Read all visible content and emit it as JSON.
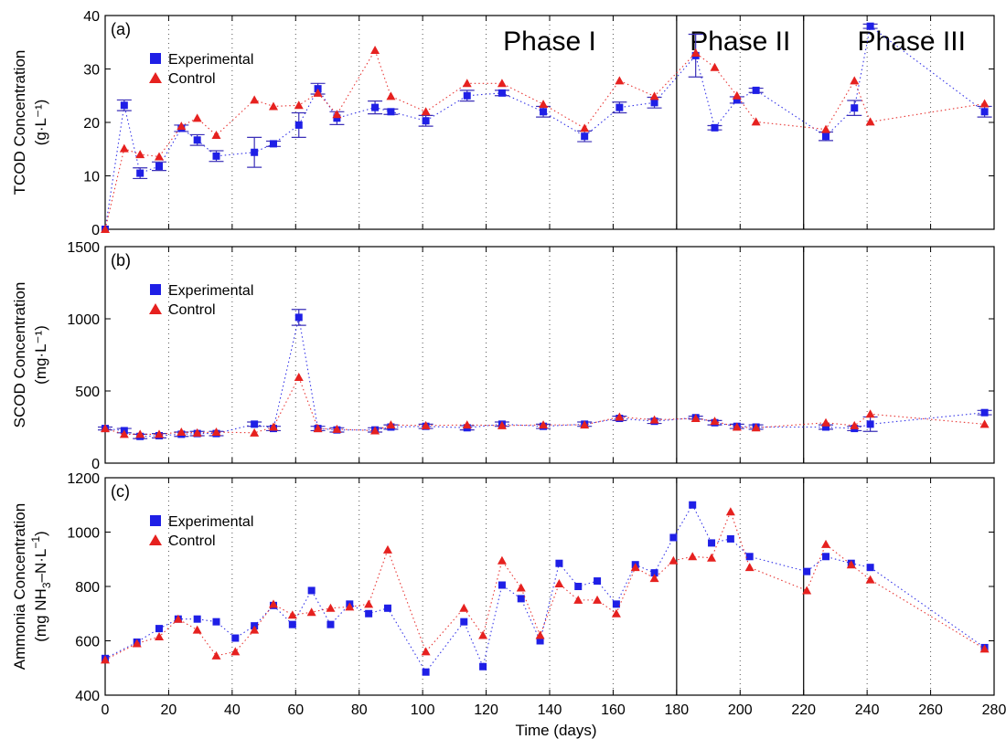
{
  "colors": {
    "experimental": "#1f1fe6",
    "control": "#e6211f",
    "experimental_errorbar": "#3a2fb8",
    "control_errorbar": "#d42424",
    "grid": "#555555"
  },
  "legend": {
    "experimental": "Experimental",
    "control": "Control"
  },
  "xlabel": "Time (days)",
  "chart_data": [
    {
      "type": "scatter",
      "panel_label": "(a)",
      "ylabel": "TCOD Concentration",
      "ylabel_unit": "(g·L⁻¹)",
      "xlim": [
        0,
        280
      ],
      "ylim": [
        0,
        40
      ],
      "yticks": [
        0,
        10,
        20,
        30,
        40
      ],
      "phase_boundaries": [
        180,
        220
      ],
      "phases": [
        {
          "label": "Phase I",
          "x_center": 140
        },
        {
          "label": "Phase II",
          "x_center": 200
        },
        {
          "label": "Phase III",
          "x_center": 254
        }
      ],
      "legend_position": "top-left",
      "grid": "vertical-dotted",
      "series": [
        {
          "name": "Experimental",
          "marker": "square",
          "x": [
            0,
            6,
            11,
            17,
            24,
            29,
            35,
            47,
            53,
            61,
            67,
            73,
            85,
            90,
            101,
            114,
            125,
            138,
            151,
            162,
            173,
            186,
            192,
            199,
            205,
            227,
            236,
            241,
            277
          ],
          "y": [
            0,
            23.2,
            10.5,
            11.8,
            18.9,
            16.7,
            13.7,
            14.4,
            16.0,
            19.5,
            26.3,
            20.8,
            22.8,
            22.0,
            20.3,
            25.0,
            25.5,
            22.0,
            17.4,
            22.8,
            23.7,
            32.5,
            19.0,
            24.2,
            26.0,
            17.4,
            22.7,
            38.0,
            22.0
          ],
          "err": [
            0,
            1.0,
            1.0,
            0.8,
            0.6,
            1.0,
            1.0,
            2.8,
            0.5,
            2.3,
            1.0,
            1.2,
            1.2,
            0.5,
            1.0,
            1.0,
            0.5,
            1.0,
            1.0,
            1.0,
            1.0,
            4.0,
            0.4,
            0.6,
            0.4,
            0.8,
            1.4,
            0.4,
            1.0
          ]
        },
        {
          "name": "Control",
          "marker": "triangle",
          "x": [
            0,
            6,
            11,
            17,
            24,
            29,
            35,
            47,
            53,
            61,
            67,
            73,
            85,
            90,
            101,
            114,
            125,
            138,
            151,
            162,
            173,
            186,
            192,
            199,
            205,
            227,
            236,
            241,
            277
          ],
          "y": [
            0,
            15.1,
            14.0,
            13.6,
            19.3,
            20.8,
            17.6,
            24.2,
            23.0,
            23.2,
            25.5,
            21.5,
            33.5,
            24.9,
            22.0,
            27.3,
            27.3,
            23.4,
            18.9,
            27.8,
            24.9,
            33.0,
            30.3,
            25.0,
            20.1,
            18.7,
            27.8,
            20.1,
            23.5
          ]
        }
      ]
    },
    {
      "type": "scatter",
      "panel_label": "(b)",
      "ylabel": "SCOD Concentration",
      "ylabel_unit": "(mg·L⁻¹)",
      "xlim": [
        0,
        280
      ],
      "ylim": [
        0,
        1500
      ],
      "yticks": [
        0,
        500,
        1000,
        1500
      ],
      "phase_boundaries": [
        180,
        220
      ],
      "legend_position": "top-left",
      "grid": "vertical-dotted",
      "series": [
        {
          "name": "Experimental",
          "marker": "square",
          "x": [
            0,
            6,
            11,
            17,
            24,
            29,
            35,
            47,
            53,
            61,
            67,
            73,
            85,
            90,
            101,
            114,
            125,
            138,
            151,
            162,
            173,
            186,
            192,
            199,
            205,
            227,
            236,
            241,
            277
          ],
          "y": [
            240,
            225,
            185,
            190,
            200,
            205,
            205,
            270,
            240,
            1010,
            240,
            230,
            230,
            250,
            255,
            245,
            270,
            255,
            270,
            310,
            290,
            315,
            280,
            255,
            250,
            250,
            240,
            270,
            350
          ],
          "err": [
            10,
            15,
            15,
            15,
            15,
            15,
            15,
            15,
            15,
            55,
            15,
            15,
            15,
            15,
            15,
            15,
            15,
            15,
            15,
            15,
            15,
            10,
            15,
            15,
            15,
            15,
            15,
            50,
            15
          ]
        },
        {
          "name": "Control",
          "marker": "triangle",
          "x": [
            0,
            6,
            11,
            17,
            24,
            29,
            35,
            47,
            53,
            61,
            67,
            73,
            85,
            90,
            101,
            114,
            125,
            138,
            151,
            162,
            173,
            186,
            192,
            199,
            205,
            227,
            236,
            241,
            277
          ],
          "y": [
            240,
            200,
            200,
            200,
            215,
            210,
            215,
            210,
            250,
            595,
            240,
            235,
            225,
            265,
            260,
            265,
            260,
            265,
            265,
            320,
            300,
            310,
            290,
            250,
            245,
            280,
            260,
            340,
            270
          ]
        }
      ]
    },
    {
      "type": "scatter",
      "panel_label": "(c)",
      "ylabel": "Ammonia Concentration",
      "ylabel_unit_main": "(mg NH",
      "ylabel_unit_sub": "3",
      "ylabel_unit_rest": "–N·L",
      "ylabel_unit_sup": "−1",
      "ylabel_unit_close": ")",
      "xlim": [
        0,
        280
      ],
      "ylim": [
        400,
        1200
      ],
      "yticks": [
        400,
        600,
        800,
        1000,
        1200
      ],
      "xticks": [
        0,
        20,
        40,
        60,
        80,
        100,
        120,
        140,
        160,
        180,
        200,
        220,
        240,
        260,
        280
      ],
      "phase_boundaries": [
        180,
        220
      ],
      "legend_position": "top-left",
      "grid": "vertical-dotted",
      "series": [
        {
          "name": "Experimental",
          "marker": "square",
          "x": [
            0,
            10,
            17,
            23,
            29,
            35,
            41,
            47,
            53,
            59,
            65,
            71,
            77,
            83,
            89,
            101,
            113,
            119,
            125,
            131,
            137,
            143,
            149,
            155,
            161,
            167,
            173,
            179,
            185,
            191,
            197,
            203,
            221,
            227,
            235,
            241,
            277
          ],
          "y": [
            535,
            595,
            645,
            680,
            680,
            670,
            610,
            655,
            730,
            660,
            785,
            660,
            735,
            700,
            720,
            485,
            670,
            505,
            805,
            755,
            600,
            885,
            800,
            820,
            735,
            880,
            850,
            980,
            1100,
            960,
            975,
            910,
            855,
            910,
            885,
            870,
            575
          ]
        },
        {
          "name": "Control",
          "marker": "triangle",
          "x": [
            0,
            10,
            17,
            23,
            29,
            35,
            41,
            47,
            53,
            59,
            65,
            71,
            77,
            83,
            89,
            101,
            113,
            119,
            125,
            131,
            137,
            143,
            149,
            155,
            161,
            167,
            173,
            179,
            185,
            191,
            197,
            203,
            221,
            227,
            235,
            241,
            277
          ],
          "y": [
            530,
            590,
            615,
            680,
            640,
            545,
            560,
            640,
            735,
            695,
            705,
            720,
            725,
            735,
            935,
            560,
            720,
            620,
            895,
            795,
            620,
            810,
            750,
            750,
            700,
            870,
            830,
            895,
            910,
            905,
            1075,
            870,
            785,
            955,
            880,
            825,
            570
          ]
        }
      ]
    }
  ]
}
